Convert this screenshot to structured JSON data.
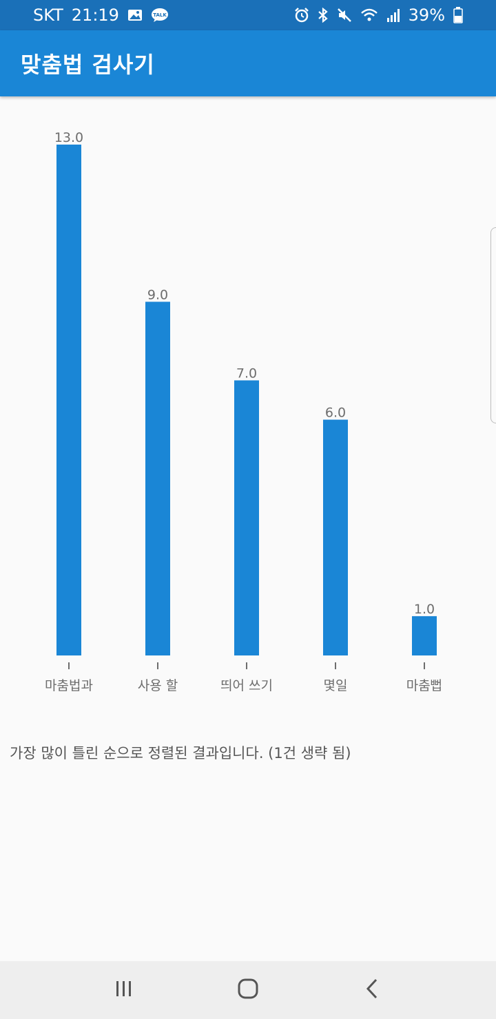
{
  "status_bar": {
    "carrier": "SKT",
    "time": "21:19",
    "battery": "39%",
    "icons": [
      "gallery-icon",
      "talk-icon",
      "alarm-icon",
      "bluetooth-icon",
      "mute-icon",
      "wifi-icon",
      "signal-icon",
      "battery-icon"
    ],
    "talk_badge": "TALK"
  },
  "app_bar": {
    "title": "맞춤법 검사기",
    "color": "#1a86d6"
  },
  "chart_data": {
    "type": "bar",
    "categories": [
      "마춤법과",
      "사용 할",
      "띄어 쓰기",
      "몇일",
      "마춤뻡"
    ],
    "values": [
      13.0,
      9.0,
      7.0,
      6.0,
      1.0
    ],
    "value_labels": [
      "13.0",
      "9.0",
      "7.0",
      "6.0",
      "1.0"
    ],
    "ylim": [
      0,
      13
    ],
    "grid": false,
    "bar_color": "#1a86d6"
  },
  "note": "가장 많이 틀린 순으로 정렬된 결과입니다. (1건 생략 됨)",
  "nav_bar": {
    "icons": [
      "recent-apps-icon",
      "home-icon",
      "back-icon"
    ]
  }
}
